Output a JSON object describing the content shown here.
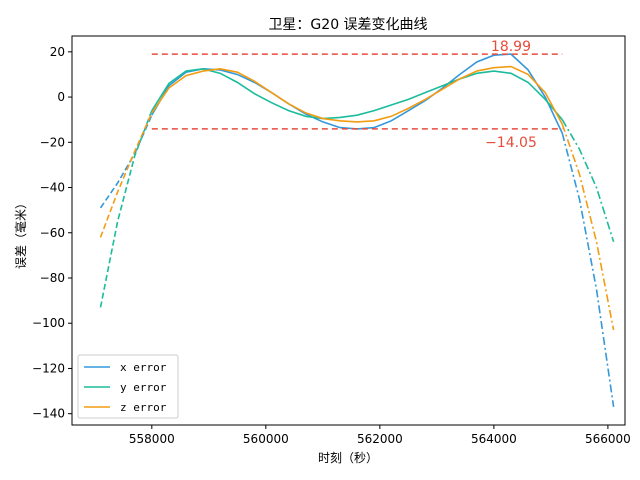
{
  "chart_data": {
    "type": "line",
    "title": "卫星：G20 误差变化曲线",
    "xlabel": "时刻（秒）",
    "ylabel": "误差（毫米）",
    "xlim": [
      556600,
      566300
    ],
    "ylim": [
      -145,
      27
    ],
    "xticks": [
      558000,
      560000,
      562000,
      564000,
      566000
    ],
    "xtick_labels": [
      "558000",
      "560000",
      "562000",
      "564000",
      "566000"
    ],
    "yticks": [
      -140,
      -120,
      -100,
      -80,
      -60,
      -40,
      -20,
      0,
      20
    ],
    "ytick_labels": [
      "−140",
      "−120",
      "−100",
      "−80",
      "−60",
      "−40",
      "−20",
      "0",
      "20"
    ],
    "grid": false,
    "legend_position": "lower-left",
    "series": [
      {
        "name": "x error",
        "color": "#3498db",
        "x": [
          557100,
          557400,
          557700,
          558000,
          558300,
          558600,
          558900,
          559200,
          559500,
          559800,
          560100,
          560400,
          560700,
          561000,
          561300,
          561600,
          561900,
          562200,
          562500,
          562800,
          563100,
          563400,
          563700,
          564000,
          564300,
          564600,
          564900,
          565200,
          565500,
          565800,
          566100
        ],
        "y": [
          -49,
          -38,
          -25,
          -8,
          5,
          11,
          12.5,
          12,
          10,
          6.5,
          2,
          -3,
          -7.5,
          -11,
          -13.5,
          -14.1,
          -13.5,
          -10.5,
          -6,
          -1.5,
          4,
          10,
          15.5,
          18.5,
          18.99,
          12,
          0,
          -16,
          -45,
          -85,
          -137
        ]
      },
      {
        "name": "y error",
        "color": "#1abc9c",
        "x": [
          557100,
          557400,
          557700,
          558000,
          558300,
          558600,
          558900,
          559200,
          559500,
          559800,
          560100,
          560400,
          560700,
          561000,
          561300,
          561600,
          561900,
          562200,
          562500,
          562800,
          563100,
          563400,
          563700,
          564000,
          564300,
          564600,
          564900,
          565200,
          565500,
          565800,
          566100
        ],
        "y": [
          -93,
          -55,
          -26,
          -6,
          6,
          11.5,
          12.5,
          10.5,
          6.5,
          1.5,
          -2.5,
          -6,
          -8.5,
          -9.5,
          -9,
          -8,
          -6,
          -3.5,
          -1,
          2,
          5,
          8,
          10.5,
          11.5,
          10.5,
          6.5,
          -1,
          -10,
          -23,
          -40,
          -64
        ]
      },
      {
        "name": "z error",
        "color": "#f39c12",
        "x": [
          557100,
          557400,
          557700,
          558000,
          558300,
          558600,
          558900,
          559200,
          559500,
          559800,
          560100,
          560400,
          560700,
          561000,
          561300,
          561600,
          561900,
          562200,
          562500,
          562800,
          563100,
          563400,
          563700,
          564000,
          564300,
          564600,
          564900,
          565200,
          565500,
          565800,
          566100
        ],
        "y": [
          -62,
          -42,
          -24,
          -7,
          4,
          9.5,
          11.5,
          12.5,
          11,
          7,
          2,
          -3,
          -7,
          -9.5,
          -10.5,
          -11,
          -10.5,
          -8.5,
          -5,
          -1,
          3.5,
          8,
          11.5,
          13,
          13.5,
          10,
          2,
          -12,
          -34,
          -64,
          -103
        ]
      }
    ],
    "fit_range": [
      558000,
      565200
    ],
    "reference_lines": [
      {
        "y": 18.99,
        "x": [
          558000,
          565200
        ],
        "color": "#e74c3c",
        "label": "18.99"
      },
      {
        "y": -14.05,
        "x": [
          558000,
          565200
        ],
        "color": "#e74c3c",
        "label": "−14.05"
      }
    ]
  }
}
